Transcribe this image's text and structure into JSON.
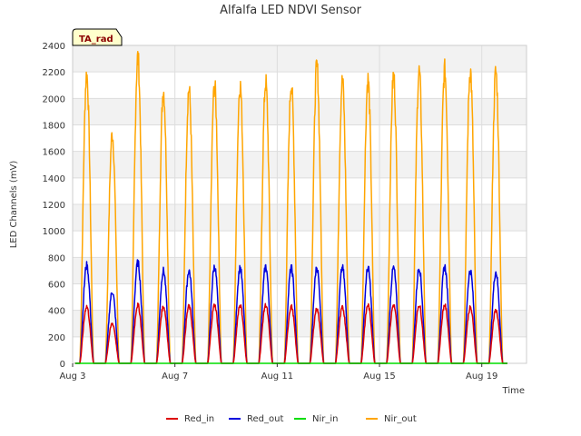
{
  "chart_data": {
    "type": "line",
    "title": "Alfalfa LED NDVI Sensor",
    "xlabel": "Time",
    "ylabel": "LED Channels (mV)",
    "badge": "TA_rad",
    "xlim": [
      3.0,
      20.75
    ],
    "ylim": [
      0,
      2400
    ],
    "yticks": [
      0,
      200,
      400,
      600,
      800,
      1000,
      1200,
      1400,
      1600,
      1800,
      2000,
      2200,
      2400
    ],
    "xticks": [
      {
        "value": 3,
        "label": "Aug 3"
      },
      {
        "value": 7,
        "label": "Aug 7"
      },
      {
        "value": 11,
        "label": "Aug 11"
      },
      {
        "value": 15,
        "label": "Aug 15"
      },
      {
        "value": 19,
        "label": "Aug 19"
      }
    ],
    "grid": true,
    "legend_position": "bottom",
    "day_noon": [
      3.55,
      4.55,
      5.55,
      6.55,
      7.55,
      8.55,
      9.55,
      10.55,
      11.55,
      12.55,
      13.55,
      14.55,
      15.55,
      16.55,
      17.55,
      18.55,
      19.55
    ],
    "series": [
      {
        "name": "Red_in",
        "color": "#dd0000",
        "daily_peaks": [
          430,
          300,
          440,
          430,
          430,
          440,
          440,
          440,
          430,
          410,
          420,
          440,
          440,
          440,
          440,
          420,
          400
        ]
      },
      {
        "name": "Red_out",
        "color": "#0000dd",
        "daily_peaks": [
          740,
          540,
          760,
          700,
          700,
          730,
          720,
          730,
          720,
          720,
          720,
          720,
          720,
          720,
          730,
          700,
          690
        ]
      },
      {
        "name": "Nir_in",
        "color": "#00dd00",
        "daily_peaks": [
          0,
          0,
          0,
          0,
          0,
          0,
          0,
          0,
          0,
          0,
          0,
          0,
          0,
          0,
          0,
          0,
          0
        ]
      },
      {
        "name": "Nir_out",
        "color": "#ffa500",
        "daily_peaks": [
          2180,
          1730,
          2310,
          2060,
          2070,
          2100,
          2100,
          2120,
          2110,
          2240,
          2130,
          2140,
          2170,
          2200,
          2210,
          2210,
          2200
        ]
      }
    ]
  }
}
